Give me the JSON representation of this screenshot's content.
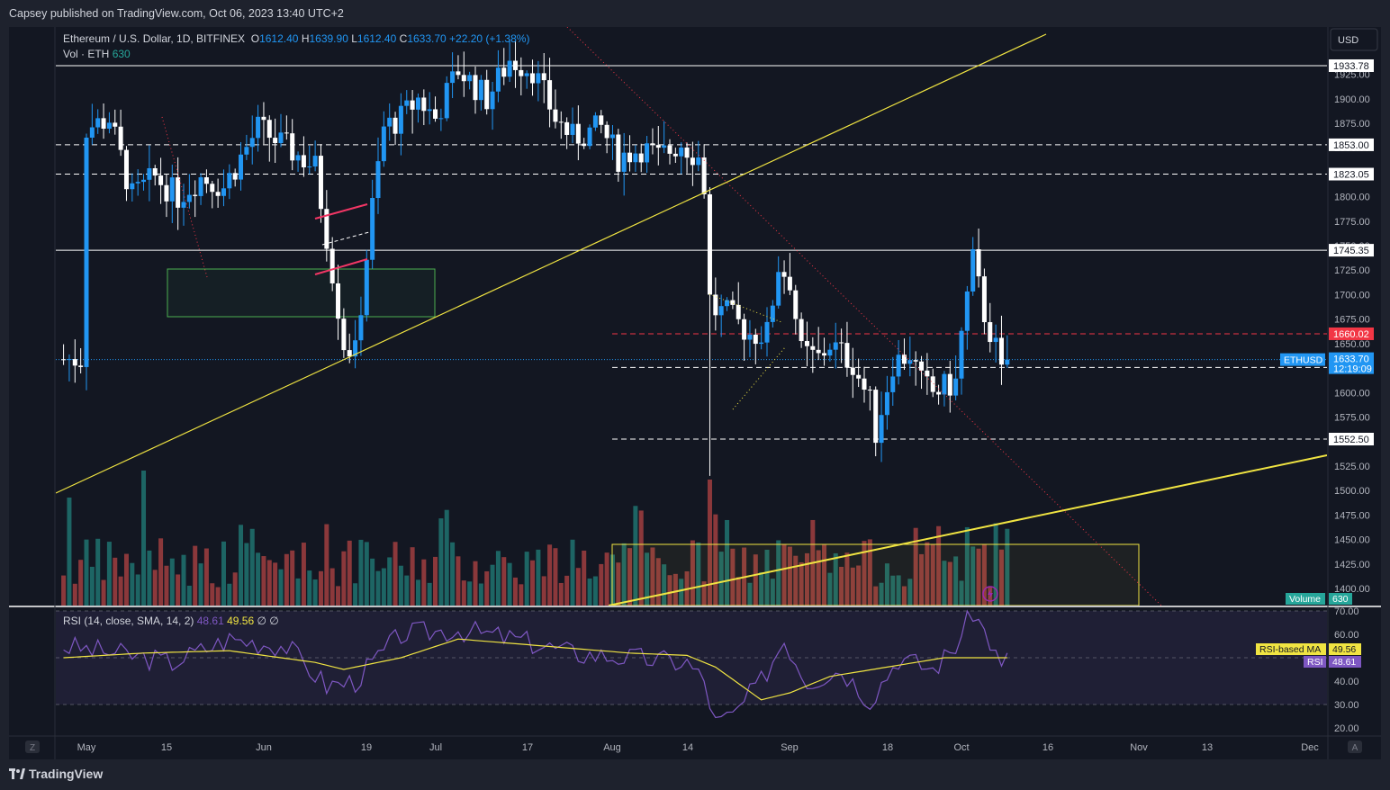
{
  "header": {
    "published": "Capsey published on TradingView.com, Oct 06, 2023 13:40 UTC+2"
  },
  "legend": {
    "symbol": "Ethereum / U.S. Dollar, 1D, BITFINEX",
    "o_label": "O",
    "o": "1612.40",
    "h_label": "H",
    "h": "1639.90",
    "l_label": "L",
    "l": "1612.40",
    "c_label": "C",
    "c": "1633.70",
    "change": "+22.20 (+1.38%)",
    "vol_label": "Vol · ETH",
    "vol_value": "630"
  },
  "rsi_legend": {
    "label": "RSI (14, close, SMA, 14, 2)",
    "rsi": "48.61",
    "ma": "49.56",
    "extra": "∅ ∅"
  },
  "price_axis": {
    "currency": "USD",
    "ticks": [
      "1925.00",
      "1900.00",
      "1875.00",
      "1850.00",
      "1825.00",
      "1800.00",
      "1775.00",
      "1750.00",
      "1725.00",
      "1700.00",
      "1675.00",
      "1650.00",
      "1625.00",
      "1600.00",
      "1575.00",
      "1550.00",
      "1525.00",
      "1500.00",
      "1475.00",
      "1450.00",
      "1425.00",
      "1400.00"
    ],
    "levels": [
      {
        "label": "1933.78",
        "value": 1933.78,
        "style": "solid",
        "color": "#ffffff"
      },
      {
        "label": "1853.00",
        "value": 1853.0,
        "style": "dashed",
        "color": "#ffffff"
      },
      {
        "label": "1823.05",
        "value": 1823.05,
        "style": "dashed",
        "color": "#ffffff"
      },
      {
        "label": "1745.35",
        "value": 1745.35,
        "style": "solid",
        "color": "#ffffff"
      },
      {
        "label": "1660.02",
        "value": 1660.02,
        "style": "dashed",
        "color": "#f23645"
      },
      {
        "label": "1625.65",
        "value": 1625.65,
        "style": "dashed",
        "color": "#ffffff"
      },
      {
        "label": "1552.50",
        "value": 1552.5,
        "style": "dashed",
        "color": "#ffffff"
      }
    ],
    "last": {
      "symbol": "ETHUSD",
      "price": "1633.70",
      "countdown": "12:19:09",
      "color": "#2196f3"
    },
    "volume_tag": {
      "label": "Volume",
      "value": "630"
    }
  },
  "rsi_axis": {
    "ticks": [
      "70.00",
      "60.00",
      "40.00",
      "30.00",
      "20.00"
    ],
    "ma_tag": "RSI-based MA",
    "ma_value": "49.56",
    "rsi_tag": "RSI",
    "rsi_value": "48.61"
  },
  "time_axis": {
    "ticks": [
      "May",
      "15",
      "Jun",
      "19",
      "Jul",
      "17",
      "Aug",
      "14",
      "Sep",
      "18",
      "Oct",
      "16",
      "Nov",
      "13",
      "Dec"
    ],
    "left_btn": "Z",
    "right_btn": "A"
  },
  "footer": {
    "brand": "TradingView"
  },
  "colors": {
    "up": "#2196f3",
    "down": "#ffffff",
    "vol_up": "#26a69a",
    "vol_down": "#ef5350",
    "trend": "#f0e442",
    "rsi": "#7e57c2",
    "rsi_ma": "#f0e442"
  },
  "chart_data": [
    {
      "type": "candlestick",
      "title": "Ethereum / U.S. Dollar, 1D, BITFINEX",
      "x_range": [
        "2023-04-26",
        "2023-12-20"
      ],
      "ylim": [
        1390,
        1955
      ],
      "series": [
        {
          "name": "ETHUSD",
          "values_approx": {
            "start": "2023-04-26",
            "ohlc_sample": [
              [
                "2023-05-01",
                1870,
                1880,
                1810,
                1825
              ],
              [
                "2023-05-15",
                1800,
                1840,
                1790,
                1820
              ],
              [
                "2023-06-01",
                1870,
                1875,
                1850,
                1860
              ],
              [
                "2023-06-10",
                1840,
                1845,
                1710,
                1750
              ],
              [
                "2023-06-15",
                1660,
                1700,
                1630,
                1650
              ],
              [
                "2023-06-21",
                1790,
                1900,
                1780,
                1890
              ],
              [
                "2023-07-01",
                1920,
                1935,
                1900,
                1915
              ],
              [
                "2023-07-14",
                1940,
                2010,
                1930,
                1940
              ],
              [
                "2023-08-01",
                1860,
                1870,
                1820,
                1840
              ],
              [
                "2023-08-17",
                1810,
                1820,
                1550,
                1690
              ],
              [
                "2023-08-29",
                1650,
                1750,
                1640,
                1730
              ],
              [
                "2023-09-11",
                1620,
                1630,
                1540,
                1560
              ],
              [
                "2023-10-01",
                1670,
                1750,
                1660,
                1730
              ],
              [
                "2023-10-06",
                1612.4,
                1639.9,
                1612.4,
                1633.7
              ]
            ]
          }
        }
      ]
    },
    {
      "type": "line",
      "title": "RSI (14, close, SMA, 14, 2)",
      "ylim": [
        15,
        75
      ],
      "series": [
        {
          "name": "RSI",
          "last": 48.61
        },
        {
          "name": "RSI-based MA",
          "last": 49.56
        }
      ]
    }
  ]
}
